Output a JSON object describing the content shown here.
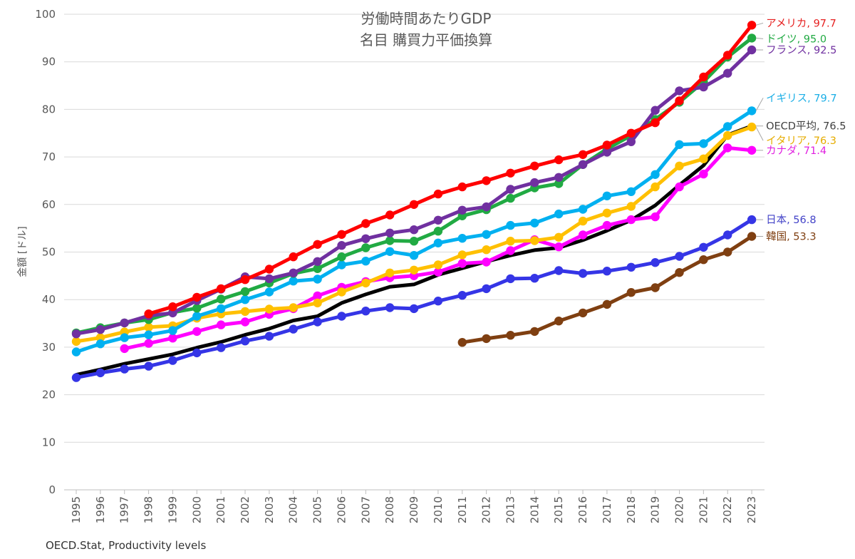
{
  "source": "OECD.Stat, Productivity levels",
  "chart_data": {
    "type": "line",
    "title": "労働時間あたりGDP",
    "subtitle": "名目 購買力平価換算",
    "ylabel": "金額 [ドル]",
    "xlabel": "",
    "ylim": [
      0,
      100
    ],
    "yticks": [
      0,
      10,
      20,
      30,
      40,
      50,
      60,
      70,
      80,
      90,
      100
    ],
    "x": [
      1995,
      1996,
      1997,
      1998,
      1999,
      2000,
      2001,
      2002,
      2003,
      2004,
      2005,
      2006,
      2007,
      2008,
      2009,
      2010,
      2011,
      2012,
      2013,
      2014,
      2015,
      2016,
      2017,
      2018,
      2019,
      2020,
      2021,
      2022,
      2023
    ],
    "x_labels": [
      "1995",
      "1996",
      "1997",
      "1998",
      "1999",
      "2000",
      "2001",
      "2002",
      "2003",
      "2004",
      "2005",
      "2006",
      "2007",
      "2008",
      "2009",
      "2010",
      "2011",
      "2012",
      "2013",
      "2014",
      "2015",
      "2016",
      "2017",
      "2018",
      "2019",
      "2020",
      "2021",
      "2022",
      "2023"
    ],
    "series": [
      {
        "name": "OECD平均",
        "color": "#000000",
        "markers": false,
        "label": "OECD平均, 76.5",
        "label_color": "#404040",
        "values": [
          24.2,
          25.3,
          26.5,
          27.5,
          28.5,
          29.9,
          31.1,
          32.6,
          33.9,
          35.6,
          36.5,
          39.3,
          41.1,
          42.7,
          43.2,
          45.2,
          46.6,
          48.0,
          49.3,
          50.4,
          50.9,
          52.5,
          54.5,
          56.7,
          59.8,
          64.1,
          68.2,
          74.6,
          76.5
        ]
      },
      {
        "name": "日本",
        "color": "#3535e6",
        "markers": true,
        "label": "日本, 56.8",
        "label_color": "#4343c8",
        "values": [
          23.6,
          24.6,
          25.4,
          26.0,
          27.2,
          28.8,
          29.9,
          31.3,
          32.3,
          33.8,
          35.3,
          36.5,
          37.6,
          38.3,
          38.1,
          39.7,
          40.9,
          42.3,
          44.4,
          44.5,
          46.1,
          45.5,
          46.0,
          46.8,
          47.8,
          49.1,
          51.0,
          53.6,
          56.8
        ]
      },
      {
        "name": "韓国",
        "color": "#7f3f11",
        "markers": true,
        "label": "韓国, 53.3",
        "label_color": "#7f3f11",
        "values": [
          null,
          null,
          null,
          null,
          null,
          null,
          null,
          null,
          null,
          null,
          null,
          null,
          null,
          null,
          null,
          null,
          31.0,
          31.8,
          32.5,
          33.3,
          35.5,
          37.2,
          39.0,
          41.5,
          42.5,
          45.7,
          48.4,
          50.0,
          53.3
        ]
      },
      {
        "name": "カナダ",
        "color": "#ff00ff",
        "markers": true,
        "label": "カナダ, 71.4",
        "label_color": "#e020e0",
        "values": [
          null,
          null,
          29.7,
          30.8,
          31.9,
          33.3,
          34.7,
          35.3,
          36.9,
          38.1,
          40.8,
          42.6,
          43.8,
          44.6,
          45.0,
          45.8,
          47.6,
          47.9,
          50.3,
          52.6,
          51.1,
          53.6,
          55.6,
          56.8,
          57.4,
          63.7,
          66.4,
          71.9,
          71.4
        ]
      },
      {
        "name": "イタリア",
        "color": "#ffc000",
        "markers": true,
        "label": "イタリア, 76.3",
        "label_color": "#e6ac00",
        "values": [
          31.2,
          32.0,
          33.2,
          34.2,
          34.5,
          36.1,
          37.0,
          37.5,
          38.0,
          38.3,
          39.3,
          41.6,
          43.5,
          45.6,
          46.2,
          47.3,
          49.4,
          50.5,
          52.3,
          52.4,
          53.1,
          56.5,
          58.2,
          59.6,
          63.7,
          68.1,
          69.6,
          74.5,
          76.3
        ]
      },
      {
        "name": "イギリス",
        "color": "#00b0f0",
        "markers": true,
        "label": "イギリス, 79.7",
        "label_color": "#1aaee6",
        "values": [
          29.0,
          30.7,
          32.0,
          32.6,
          33.5,
          36.5,
          38.1,
          40.0,
          41.6,
          43.9,
          44.3,
          47.3,
          48.1,
          50.1,
          49.3,
          51.9,
          52.9,
          53.7,
          55.6,
          56.1,
          58.0,
          59.0,
          61.8,
          62.7,
          66.3,
          72.6,
          72.8,
          76.4,
          79.7
        ]
      },
      {
        "name": "ドイツ",
        "color": "#21aa43",
        "markers": true,
        "label": "ドイツ, 95.0",
        "label_color": "#21aa43",
        "values": [
          33.0,
          34.1,
          35.1,
          35.8,
          37.3,
          38.2,
          40.1,
          41.7,
          43.5,
          45.5,
          46.5,
          49.0,
          50.9,
          52.4,
          52.3,
          54.4,
          57.6,
          58.9,
          61.3,
          63.5,
          64.4,
          68.4,
          71.7,
          74.5,
          77.9,
          81.5,
          85.8,
          91.0,
          95.0
        ]
      },
      {
        "name": "フランス",
        "color": "#7030a0",
        "markers": true,
        "label": "フランス, 92.5",
        "label_color": "#7030a0",
        "values": [
          32.8,
          33.7,
          35.1,
          36.6,
          37.2,
          39.8,
          42.2,
          44.8,
          44.4,
          45.6,
          48.0,
          51.4,
          52.8,
          54.0,
          54.7,
          56.7,
          58.8,
          59.5,
          63.2,
          64.6,
          65.7,
          68.4,
          71.0,
          73.2,
          79.8,
          83.9,
          84.7,
          87.6,
          92.5
        ]
      },
      {
        "name": "アメリカ",
        "color": "#ff0000",
        "markers": true,
        "label": "アメリカ, 97.7",
        "label_color": "#e61e1e",
        "values": [
          null,
          null,
          null,
          37.0,
          38.5,
          40.5,
          42.3,
          44.2,
          46.4,
          49.0,
          51.6,
          53.7,
          56.0,
          57.8,
          60.0,
          62.2,
          63.7,
          65.0,
          66.6,
          68.1,
          69.4,
          70.5,
          72.5,
          75.0,
          77.2,
          81.8,
          86.8,
          91.4,
          97.7
        ]
      }
    ]
  }
}
